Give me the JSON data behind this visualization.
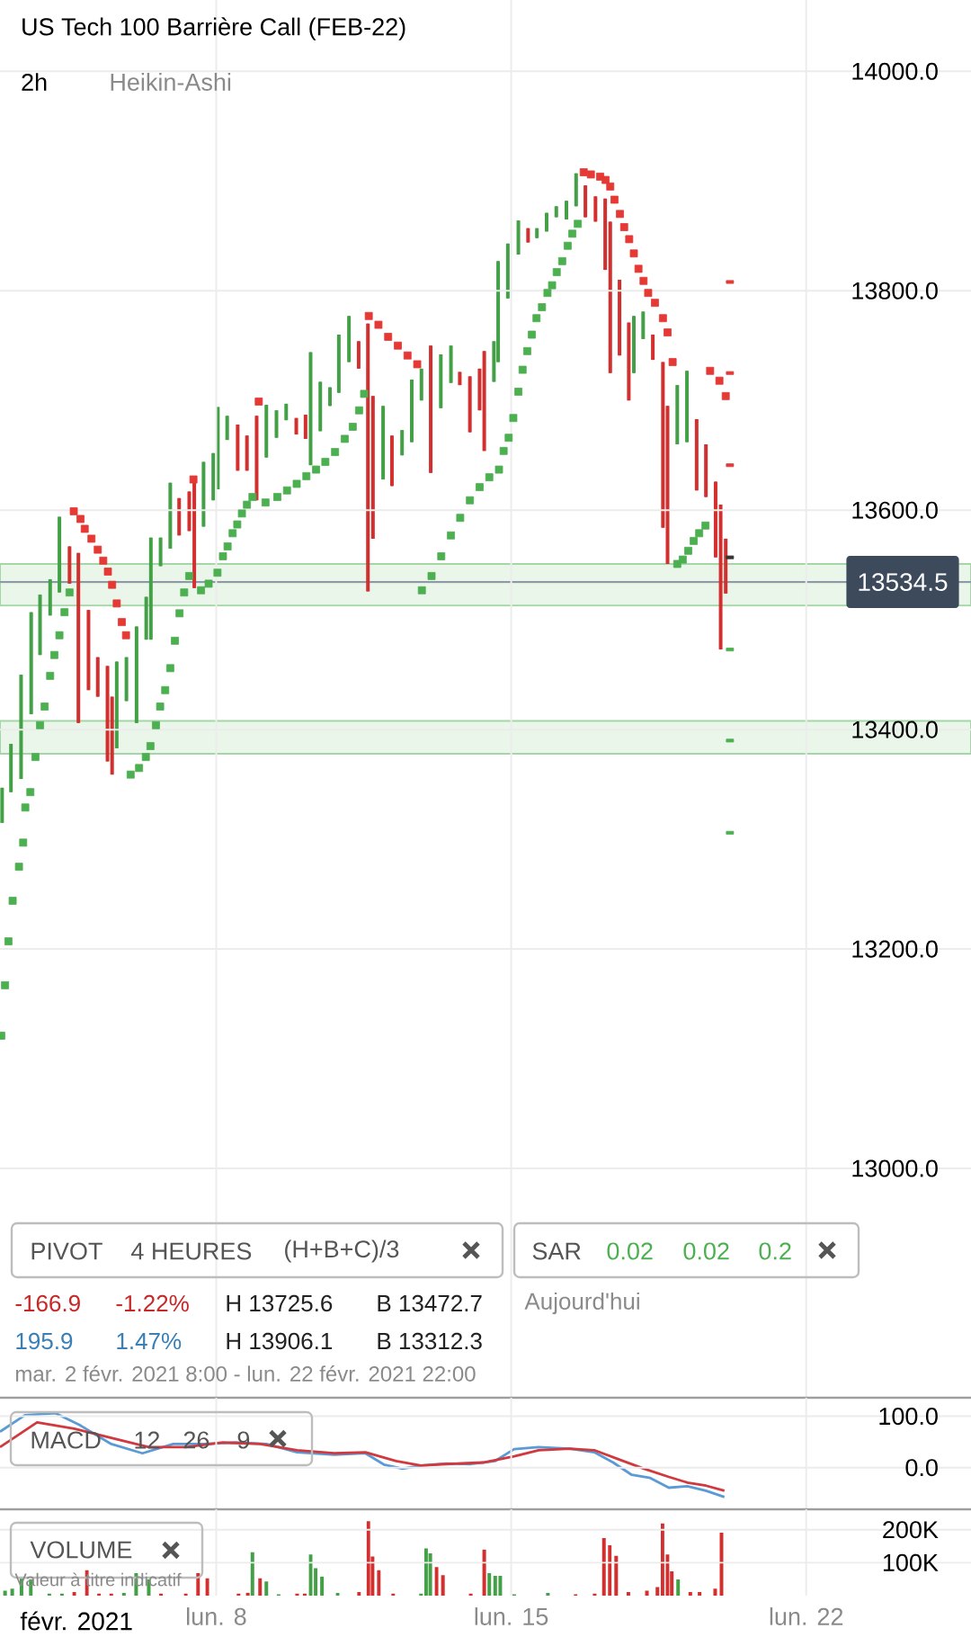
{
  "chart_data": [
    {
      "type": "candlestick",
      "title": "US Tech 100 Barrière Call (FEB-22)",
      "subtitle": "2h",
      "annotations": [
        "Heikin-Ashi",
        "PIVOT",
        "4 HEURES",
        "(H+B+C)/3",
        "SAR",
        "0.02",
        "0.02",
        "0.2",
        "-166.9",
        "-1.22%",
        "H 13725.6",
        "B 13472.7",
        "Aujourd'hui",
        "195.9",
        "1.47%",
        "H 13906.1",
        "B 13312.3",
        "mar. 2 févr. 2021 8:00 - lun. 22 févr. 2021 22:00"
      ],
      "xlim": [
        2.87,
        25.91
      ],
      "ylim": [
        12791,
        14065
      ],
      "xticks": [
        {
          "value": 8,
          "label": null
        },
        {
          "value": 15,
          "label": null
        },
        {
          "value": 22,
          "label": null
        }
      ],
      "yticks": [
        {
          "value": 13000,
          "label": "13000.0"
        },
        {
          "value": 13200,
          "label": "13200.0"
        },
        {
          "value": 13400,
          "label": "13400.0"
        },
        {
          "value": 13600,
          "label": "13600.0"
        },
        {
          "value": 13800,
          "label": "13800.0"
        },
        {
          "value": 14000,
          "label": "14000.0"
        }
      ],
      "tick_labels": "y",
      "grid": true,
      "bands": [
        {
          "axis": "y",
          "from": 13513,
          "to": 13551,
          "color": "#eaf6ea"
        },
        {
          "axis": "y",
          "from": 13378,
          "to": 13408,
          "color": "#eaf6ea"
        }
      ],
      "ref_lines": [
        {
          "axis": "y",
          "value": 13534.5,
          "label": "13534.5",
          "color": "#8e99a6"
        }
      ],
      "series": [
        {
          "type": "candlestick",
          "x": [
            2.92,
            3.13,
            3.37,
            3.61,
            3.82,
            4.06,
            4.28,
            4.52,
            4.73,
            4.97,
            5.19,
            5.42,
            5.53,
            5.64,
            5.87,
            6.11,
            6.34,
            6.45,
            6.68,
            6.91,
            7.12,
            7.36,
            7.48,
            7.7,
            7.93,
            8.04,
            8.26,
            8.51,
            8.73,
            8.96,
            9.19,
            9.43,
            9.66,
            9.9,
            10.12,
            10.24,
            10.47,
            10.7,
            10.91,
            11.15,
            11.38,
            11.6,
            11.72,
            11.96,
            12.17,
            12.41,
            12.64,
            12.87,
            13.09,
            13.33,
            13.57,
            13.78,
            14.02,
            14.25,
            14.36,
            14.59,
            14.69,
            14.92,
            15.17,
            15.4,
            15.61,
            15.84,
            16.07,
            16.31,
            16.54,
            16.76,
            17.0,
            17.23,
            17.35,
            17.57,
            17.79,
            17.91,
            18.13,
            18.36,
            18.6,
            18.71,
            18.94,
            19.17,
            19.4,
            19.62,
            19.85,
            19.97,
            20.09
          ],
          "ohlc": [
            [
              13315,
              13347,
              13315,
              13347
            ],
            [
              13343,
              13387,
              13343,
              13387
            ],
            [
              13355,
              13450,
              13355,
              13450
            ],
            [
              13414,
              13507,
              13414,
              13507
            ],
            [
              13468,
              13523,
              13468,
              13523
            ],
            [
              13504,
              13537,
              13504,
              13537
            ],
            [
              13525,
              13594,
              13525,
              13594
            ],
            [
              13567,
              13567,
              13533,
              13533
            ],
            [
              13561,
              13561,
              13406,
              13406
            ],
            [
              13509,
              13509,
              13436,
              13436
            ],
            [
              13466,
              13466,
              13430,
              13430
            ],
            [
              13458,
              13458,
              13371,
              13371
            ],
            [
              13430,
              13430,
              13359,
              13359
            ],
            [
              13383,
              13462,
              13383,
              13462
            ],
            [
              13426,
              13466,
              13426,
              13466
            ],
            [
              13406,
              13494,
              13406,
              13494
            ],
            [
              13482,
              13521,
              13482,
              13521
            ],
            [
              13482,
              13575,
              13482,
              13575
            ],
            [
              13549,
              13575,
              13549,
              13575
            ],
            [
              13565,
              13625,
              13565,
              13625
            ],
            [
              13611,
              13611,
              13577,
              13577
            ],
            [
              13617,
              13617,
              13581,
              13581
            ],
            [
              13628,
              13628,
              13529,
              13529
            ],
            [
              13585,
              13644,
              13585,
              13644
            ],
            [
              13609,
              13652,
              13609,
              13652
            ],
            [
              13619,
              13694,
              13619,
              13694
            ],
            [
              13664,
              13686,
              13664,
              13686
            ],
            [
              13678,
              13678,
              13636,
              13636
            ],
            [
              13668,
              13668,
              13636,
              13636
            ],
            [
              13686,
              13686,
              13609,
              13609
            ],
            [
              13648,
              13696,
              13648,
              13696
            ],
            [
              13666,
              13691,
              13666,
              13691
            ],
            [
              13682,
              13697,
              13682,
              13697
            ],
            [
              13684,
              13684,
              13669,
              13669
            ],
            [
              13687,
              13687,
              13665,
              13665
            ],
            [
              13641,
              13744,
              13641,
              13744
            ],
            [
              13672,
              13717,
              13672,
              13717
            ],
            [
              13695,
              13712,
              13695,
              13712
            ],
            [
              13707,
              13760,
              13707,
              13760
            ],
            [
              13735,
              13777,
              13735,
              13777
            ],
            [
              13754,
              13754,
              13729,
              13729
            ],
            [
              13770,
              13770,
              13526,
              13526
            ],
            [
              13704,
              13704,
              13574,
              13574
            ],
            [
              13628,
              13695,
              13628,
              13695
            ],
            [
              13668,
              13668,
              13622,
              13622
            ],
            [
              13650,
              13673,
              13650,
              13673
            ],
            [
              13662,
              13719,
              13662,
              13719
            ],
            [
              13700,
              13729,
              13700,
              13729
            ],
            [
              13750,
              13750,
              13634,
              13634
            ],
            [
              13693,
              13742,
              13693,
              13742
            ],
            [
              13716,
              13750,
              13716,
              13750
            ],
            [
              13726,
              13726,
              13714,
              13714
            ],
            [
              13722,
              13722,
              13671,
              13671
            ],
            [
              13729,
              13729,
              13691,
              13691
            ],
            [
              13745,
              13745,
              13654,
              13654
            ],
            [
              13717,
              13754,
              13717,
              13754
            ],
            [
              13735,
              13827,
              13735,
              13827
            ],
            [
              13793,
              13843,
              13793,
              13843
            ],
            [
              13833,
              13864,
              13833,
              13864
            ],
            [
              13857,
              13857,
              13844,
              13844
            ],
            [
              13848,
              13857,
              13848,
              13857
            ],
            [
              13854,
              13871,
              13854,
              13871
            ],
            [
              13867,
              13877,
              13867,
              13877
            ],
            [
              13865,
              13882,
              13865,
              13882
            ],
            [
              13877,
              13907,
              13877,
              13907
            ],
            [
              13896,
              13896,
              13867,
              13867
            ],
            [
              13886,
              13886,
              13863,
              13863
            ],
            [
              13884,
              13884,
              13819,
              13819
            ],
            [
              13863,
              13863,
              13725,
              13725
            ],
            [
              13810,
              13810,
              13741,
              13741
            ],
            [
              13771,
              13771,
              13700,
              13700
            ],
            [
              13725,
              13777,
              13725,
              13777
            ],
            [
              13756,
              13781,
              13756,
              13781
            ],
            [
              13760,
              13760,
              13737,
              13737
            ],
            [
              13735,
              13735,
              13584,
              13584
            ],
            [
              13695,
              13695,
              13551,
              13551
            ],
            [
              13660,
              13714,
              13660,
              13714
            ],
            [
              13662,
              13727,
              13662,
              13727
            ],
            [
              13683,
              13683,
              13618,
              13618
            ],
            [
              13660,
              13660,
              13612,
              13612
            ],
            [
              13626,
              13626,
              13557,
              13557
            ],
            [
              13605,
              13605,
              13473,
              13473
            ],
            [
              13574,
              13574,
              13524,
              13524
            ]
          ],
          "colors": [
            "#43a047",
            "#43a047",
            "#43a047",
            "#43a047",
            "#43a047",
            "#43a047",
            "#43a047",
            "#d32f2f",
            "#d32f2f",
            "#d32f2f",
            "#d32f2f",
            "#d32f2f",
            "#d32f2f",
            "#43a047",
            "#43a047",
            "#43a047",
            "#43a047",
            "#43a047",
            "#43a047",
            "#43a047",
            "#d32f2f",
            "#d32f2f",
            "#d32f2f",
            "#43a047",
            "#43a047",
            "#43a047",
            "#43a047",
            "#d32f2f",
            "#d32f2f",
            "#d32f2f",
            "#43a047",
            "#43a047",
            "#43a047",
            "#d32f2f",
            "#d32f2f",
            "#43a047",
            "#43a047",
            "#43a047",
            "#43a047",
            "#43a047",
            "#d32f2f",
            "#d32f2f",
            "#d32f2f",
            "#43a047",
            "#d32f2f",
            "#43a047",
            "#43a047",
            "#43a047",
            "#d32f2f",
            "#43a047",
            "#43a047",
            "#d32f2f",
            "#d32f2f",
            "#d32f2f",
            "#d32f2f",
            "#43a047",
            "#43a047",
            "#43a047",
            "#43a047",
            "#d32f2f",
            "#43a047",
            "#43a047",
            "#43a047",
            "#43a047",
            "#43a047",
            "#d32f2f",
            "#d32f2f",
            "#d32f2f",
            "#d32f2f",
            "#d32f2f",
            "#d32f2f",
            "#43a047",
            "#43a047",
            "#d32f2f",
            "#d32f2f",
            "#d32f2f",
            "#43a047",
            "#43a047",
            "#d32f2f",
            "#d32f2f",
            "#d32f2f",
            "#d32f2f",
            "#d32f2f"
          ]
        },
        {
          "type": "scatter",
          "marker": "square",
          "x": [
            2.9,
            2.99,
            3.07,
            3.17,
            3.32,
            3.42,
            3.47,
            3.59,
            3.71,
            3.82,
            3.93,
            4.06,
            4.16,
            4.28,
            4.4,
            4.52,
            4.62,
            4.78,
            4.88,
            5.04,
            5.19,
            5.32,
            5.43,
            5.53,
            5.64,
            5.76,
            5.86,
            5.97,
            6.17,
            6.33,
            6.44,
            6.57,
            6.67,
            6.79,
            6.91,
            7.02,
            7.13,
            7.24,
            7.36,
            7.46,
            7.64,
            7.82,
            8.03,
            8.16,
            8.27,
            8.39,
            8.5,
            8.61,
            8.73,
            8.86,
            9.01,
            9.17,
            9.45,
            9.68,
            9.91,
            10.14,
            10.37,
            10.59,
            10.82,
            11.05,
            11.24,
            11.39,
            11.51,
            11.62,
            11.85,
            12.08,
            12.31,
            12.54,
            12.77,
            12.88,
            13.11,
            13.34,
            13.57,
            13.79,
            14.02,
            14.25,
            14.48,
            14.71,
            14.82,
            14.94,
            15.05,
            15.17,
            15.27,
            15.38,
            15.49,
            15.6,
            15.73,
            15.86,
            15.97,
            16.08,
            16.21,
            16.34,
            16.45,
            16.58,
            16.72,
            16.89,
            17.11,
            17.24,
            17.35,
            17.45,
            17.58,
            17.68,
            17.8,
            17.91,
            18.02,
            18.14,
            18.25,
            18.41,
            18.6,
            18.71,
            18.83,
            18.94,
            19.07,
            19.2,
            19.33,
            19.46,
            19.61,
            19.72,
            19.94,
            20.09
          ],
          "values": [
            13121,
            13167,
            13207,
            13244,
            13275,
            13297,
            13329,
            13343,
            13375,
            13404,
            13421,
            13449,
            13468,
            13486,
            13507,
            13525,
            13599,
            13592,
            13583,
            13574,
            13564,
            13554,
            13544,
            13532,
            13515,
            13498,
            13486,
            13359,
            13365,
            13375,
            13385,
            13404,
            13421,
            13436,
            13456,
            13481,
            13506,
            13525,
            13540,
            13628,
            13527,
            13533,
            13543,
            13558,
            13567,
            13579,
            13587,
            13597,
            13605,
            13612,
            13699,
            13607,
            13612,
            13618,
            13624,
            13631,
            13637,
            13644,
            13653,
            13665,
            13676,
            13691,
            13706,
            13777,
            13769,
            13758,
            13750,
            13741,
            13733,
            13527,
            13540,
            13558,
            13577,
            13593,
            13609,
            13621,
            13630,
            13637,
            13654,
            13666,
            13684,
            13708,
            13728,
            13745,
            13760,
            13775,
            13785,
            13798,
            13805,
            13817,
            13827,
            13841,
            13852,
            13861,
            13908,
            13906,
            13904,
            13901,
            13895,
            13883,
            13870,
            13858,
            13847,
            13834,
            13820,
            13809,
            13798,
            13789,
            13775,
            13762,
            13735,
            13551,
            13555,
            13563,
            13572,
            13579,
            13586,
            13727,
            13718,
            13704
          ],
          "colors": [
            "#4caf50",
            "#4caf50",
            "#4caf50",
            "#4caf50",
            "#4caf50",
            "#4caf50",
            "#4caf50",
            "#4caf50",
            "#4caf50",
            "#4caf50",
            "#4caf50",
            "#4caf50",
            "#4caf50",
            "#4caf50",
            "#4caf50",
            "#4caf50",
            "#e53935",
            "#e53935",
            "#e53935",
            "#e53935",
            "#e53935",
            "#e53935",
            "#e53935",
            "#e53935",
            "#e53935",
            "#e53935",
            "#e53935",
            "#4caf50",
            "#4caf50",
            "#4caf50",
            "#4caf50",
            "#4caf50",
            "#4caf50",
            "#4caf50",
            "#4caf50",
            "#4caf50",
            "#4caf50",
            "#4caf50",
            "#4caf50",
            "#e53935",
            "#4caf50",
            "#4caf50",
            "#4caf50",
            "#4caf50",
            "#4caf50",
            "#4caf50",
            "#4caf50",
            "#4caf50",
            "#4caf50",
            "#4caf50",
            "#e53935",
            "#4caf50",
            "#4caf50",
            "#4caf50",
            "#4caf50",
            "#4caf50",
            "#4caf50",
            "#4caf50",
            "#4caf50",
            "#4caf50",
            "#4caf50",
            "#4caf50",
            "#4caf50",
            "#e53935",
            "#e53935",
            "#e53935",
            "#e53935",
            "#e53935",
            "#e53935",
            "#4caf50",
            "#4caf50",
            "#4caf50",
            "#4caf50",
            "#4caf50",
            "#4caf50",
            "#4caf50",
            "#4caf50",
            "#4caf50",
            "#4caf50",
            "#4caf50",
            "#4caf50",
            "#4caf50",
            "#4caf50",
            "#4caf50",
            "#4caf50",
            "#4caf50",
            "#4caf50",
            "#4caf50",
            "#4caf50",
            "#4caf50",
            "#4caf50",
            "#4caf50",
            "#4caf50",
            "#4caf50",
            "#e53935",
            "#e53935",
            "#e53935",
            "#e53935",
            "#e53935",
            "#e53935",
            "#e53935",
            "#e53935",
            "#e53935",
            "#e53935",
            "#e53935",
            "#e53935",
            "#e53935",
            "#e53935",
            "#e53935",
            "#e53935",
            "#e53935",
            "#4caf50",
            "#4caf50",
            "#4caf50",
            "#4caf50",
            "#4caf50",
            "#4caf50",
            "#e53935",
            "#e53935",
            "#e53935"
          ]
        },
        {
          "type": "scatter",
          "marker": "square",
          "x": [
            20.19,
            20.19,
            20.19,
            20.19,
            20.19,
            20.19,
            20.19
          ],
          "values": [
            13808,
            13725,
            13641,
            13557,
            13473,
            13390,
            13306
          ],
          "colors": [
            "#e53935",
            "#e53935",
            "#e53935",
            "#333333",
            "#4caf50",
            "#4caf50",
            "#4caf50"
          ]
        }
      ]
    },
    {
      "type": "line",
      "annotations": [
        "MACD",
        "12",
        "26",
        "9"
      ],
      "xlim": [
        2.87,
        25.91
      ],
      "ylim": [
        -81,
        136
      ],
      "xticks": [
        {
          "value": 8,
          "label": null
        },
        {
          "value": 15,
          "label": null
        },
        {
          "value": 22,
          "label": null
        }
      ],
      "yticks": [
        {
          "value": 0,
          "label": "0.0"
        },
        {
          "value": 100,
          "label": "100.0"
        }
      ],
      "tick_labels": "y",
      "grid": true,
      "series": [
        {
          "color": "#5b9bd5",
          "x": [
            2.87,
            3.46,
            4.19,
            4.78,
            5.51,
            6.25,
            6.98,
            7.72,
            8.45,
            9.19,
            9.92,
            10.8,
            11.54,
            11.98,
            12.42,
            12.86,
            13.45,
            14.04,
            14.62,
            15.07,
            15.65,
            16.39,
            16.97,
            17.42,
            17.86,
            18.3,
            18.74,
            19.18,
            19.62,
            20.06
          ],
          "values": [
            70,
            102,
            106,
            82,
            46,
            28,
            46,
            46,
            49,
            46,
            30,
            25,
            28,
            6,
            -2,
            4,
            8,
            7,
            13,
            36,
            40,
            37,
            30,
            10,
            -14,
            -20,
            -39,
            -36,
            -45,
            -57
          ]
        },
        {
          "color": "#d0393e",
          "x": [
            2.87,
            3.75,
            4.63,
            5.51,
            6.4,
            7.28,
            8.16,
            9.04,
            9.92,
            10.8,
            11.54,
            12.27,
            12.86,
            13.45,
            14.33,
            15.07,
            15.65,
            16.39,
            16.97,
            17.56,
            18.15,
            18.74,
            19.18,
            19.62,
            20.06
          ],
          "values": [
            40,
            88,
            76,
            58,
            40,
            40,
            49,
            46,
            34,
            28,
            30,
            13,
            4,
            7,
            10,
            22,
            34,
            37,
            34,
            16,
            -2,
            -18,
            -29,
            -35,
            -45
          ]
        }
      ]
    },
    {
      "type": "bar",
      "annotations": [
        "VOLUME",
        "Valeur à titre indicatif",
        "févr. 2021"
      ],
      "xlim": [
        2.87,
        25.91
      ],
      "ylim": [
        0,
        262000
      ],
      "xticks": [
        {
          "value": 8,
          "label": "lun. 8"
        },
        {
          "value": 15,
          "label": "lun. 15"
        },
        {
          "value": 22,
          "label": "lun. 22"
        }
      ],
      "yticks": [
        {
          "value": 100000,
          "label": "100K"
        },
        {
          "value": 200000,
          "label": "200K"
        }
      ],
      "grid": true,
      "x": [
        2.99,
        3.16,
        3.38,
        3.6,
        4.04,
        4.34,
        4.63,
        4.93,
        5.22,
        5.51,
        5.81,
        6.1,
        6.4,
        6.69,
        7.28,
        7.57,
        7.79,
        8.53,
        8.75,
        8.86,
        9.04,
        9.19,
        9.48,
        9.92,
        10.1,
        10.24,
        10.36,
        10.51,
        10.88,
        11.39,
        11.61,
        11.71,
        11.86,
        12.2,
        12.86,
        12.98,
        13.08,
        13.23,
        13.38,
        14.04,
        14.36,
        14.48,
        14.62,
        14.74,
        15.07,
        15.87,
        16.53,
        16.98,
        17.2,
        17.34,
        17.49,
        17.78,
        18.22,
        18.47,
        18.59,
        18.71,
        18.81,
        18.96,
        19.25,
        19.47,
        19.84,
        19.99
      ],
      "values": [
        15000,
        21000,
        53000,
        49000,
        6000,
        6000,
        11000,
        77000,
        6000,
        6000,
        8000,
        68000,
        49000,
        6000,
        6000,
        68000,
        53000,
        6000,
        9000,
        132000,
        53000,
        43000,
        4000,
        6000,
        6000,
        125000,
        83000,
        58000,
        8000,
        11000,
        226000,
        119000,
        77000,
        6000,
        6000,
        143000,
        128000,
        87000,
        62000,
        6000,
        140000,
        68000,
        60000,
        60000,
        4000,
        8000,
        4000,
        6000,
        175000,
        153000,
        121000,
        11000,
        15000,
        26000,
        219000,
        125000,
        74000,
        49000,
        11000,
        11000,
        21000,
        191000
      ],
      "colors": [
        "#43a047",
        "#43a047",
        "#43a047",
        "#43a047",
        "#43a047",
        "#43a047",
        "#d32f2f",
        "#d32f2f",
        "#d32f2f",
        "#d32f2f",
        "#43a047",
        "#43a047",
        "#43a047",
        "#d32f2f",
        "#d32f2f",
        "#d32f2f",
        "#d32f2f",
        "#d32f2f",
        "#d32f2f",
        "#43a047",
        "#d32f2f",
        "#43a047",
        "#43a047",
        "#d32f2f",
        "#d32f2f",
        "#43a047",
        "#43a047",
        "#43a047",
        "#43a047",
        "#d32f2f",
        "#d32f2f",
        "#d32f2f",
        "#d32f2f",
        "#d32f2f",
        "#43a047",
        "#43a047",
        "#43a047",
        "#d32f2f",
        "#d32f2f",
        "#d32f2f",
        "#d32f2f",
        "#43a047",
        "#43a047",
        "#43a047",
        "#43a047",
        "#43a047",
        "#d32f2f",
        "#d32f2f",
        "#d32f2f",
        "#d32f2f",
        "#d32f2f",
        "#d32f2f",
        "#d32f2f",
        "#d32f2f",
        "#d32f2f",
        "#d32f2f",
        "#d32f2f",
        "#43a047",
        "#d32f2f",
        "#d32f2f",
        "#d32f2f",
        "#d32f2f"
      ]
    }
  ]
}
